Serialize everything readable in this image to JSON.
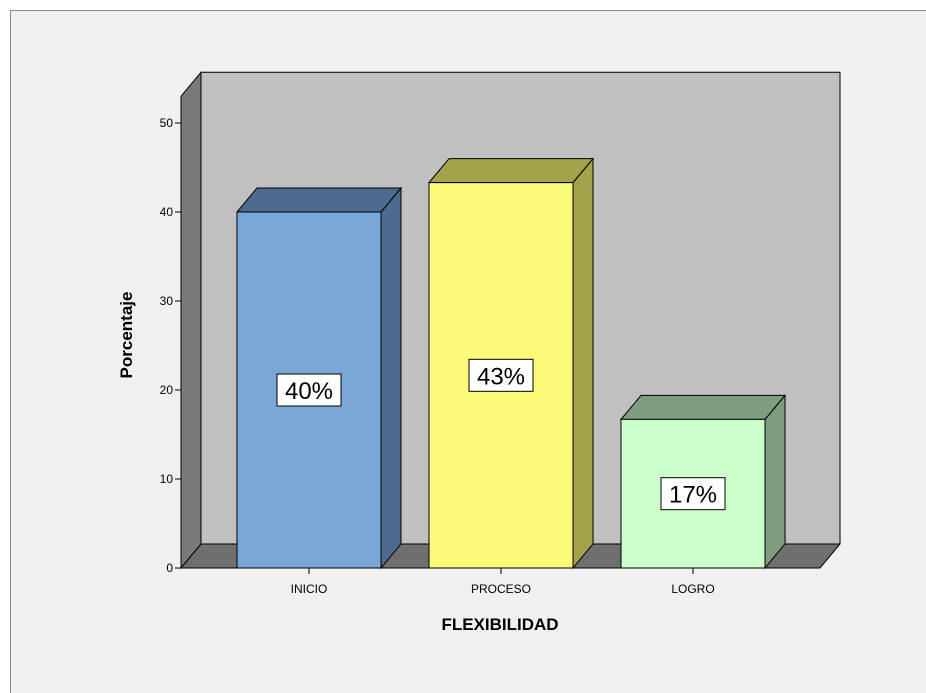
{
  "chart_data": {
    "type": "bar",
    "title": "",
    "xlabel": "FLEXIBILIDAD",
    "ylabel": "Porcentaje",
    "categories": [
      "INICIO",
      "PROCESO",
      "LOGRO"
    ],
    "values": [
      40,
      43.3,
      16.7
    ],
    "data_labels": [
      "40%",
      "43%",
      "17%"
    ],
    "ylim": [
      0,
      53
    ],
    "yticks": [
      0,
      10,
      20,
      30,
      40,
      50
    ],
    "ytick_labels": [
      "0",
      "10",
      "20",
      "30",
      "40",
      "50"
    ],
    "grid": false,
    "legend": "none",
    "three_d": true,
    "colors": {
      "background": "#f0f0f0",
      "wall": "#c0c0c0",
      "floor": "#6f6f6f",
      "side_wall": "#7a7a7a",
      "bars": [
        {
          "front": "#7ba7d6",
          "top": "#4c6b8e",
          "side": "#4c6b8e"
        },
        {
          "front": "#fafa78",
          "top": "#a4a24a",
          "side": "#a4a24a"
        },
        {
          "front": "#ccffcc",
          "top": "#7f9c7f",
          "side": "#7f9c7f"
        }
      ]
    }
  }
}
